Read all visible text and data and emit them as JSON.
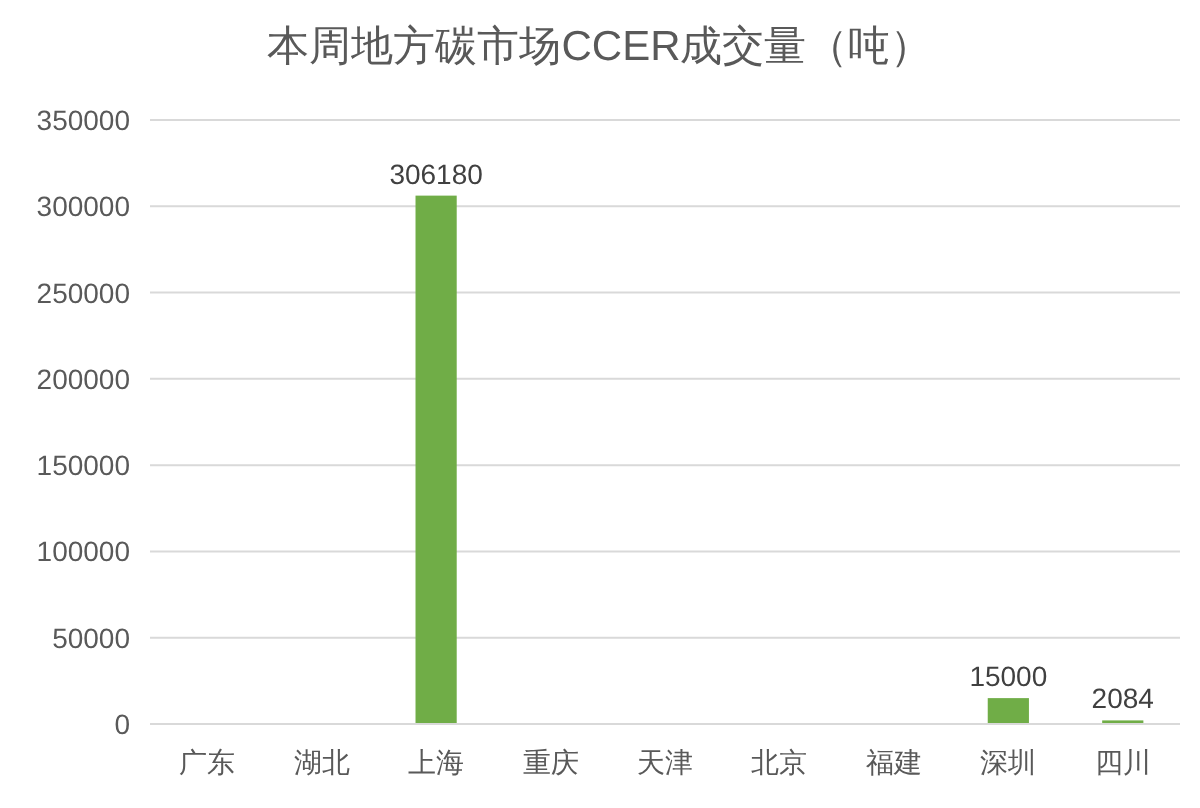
{
  "chart_data": {
    "type": "bar",
    "title": "本周地方碳市场CCER成交量（吨）",
    "categories": [
      "广东",
      "湖北",
      "上海",
      "重庆",
      "天津",
      "北京",
      "福建",
      "深圳",
      "四川"
    ],
    "values": [
      0,
      0,
      306180,
      0,
      0,
      0,
      0,
      15000,
      2084
    ],
    "value_labels": [
      null,
      null,
      "306180",
      null,
      null,
      null,
      null,
      "15000",
      "2084"
    ],
    "color": "#70ad47",
    "ylim": [
      0,
      350000
    ],
    "yticks": [
      0,
      50000,
      100000,
      150000,
      200000,
      250000,
      300000,
      350000
    ],
    "grid": "y"
  }
}
